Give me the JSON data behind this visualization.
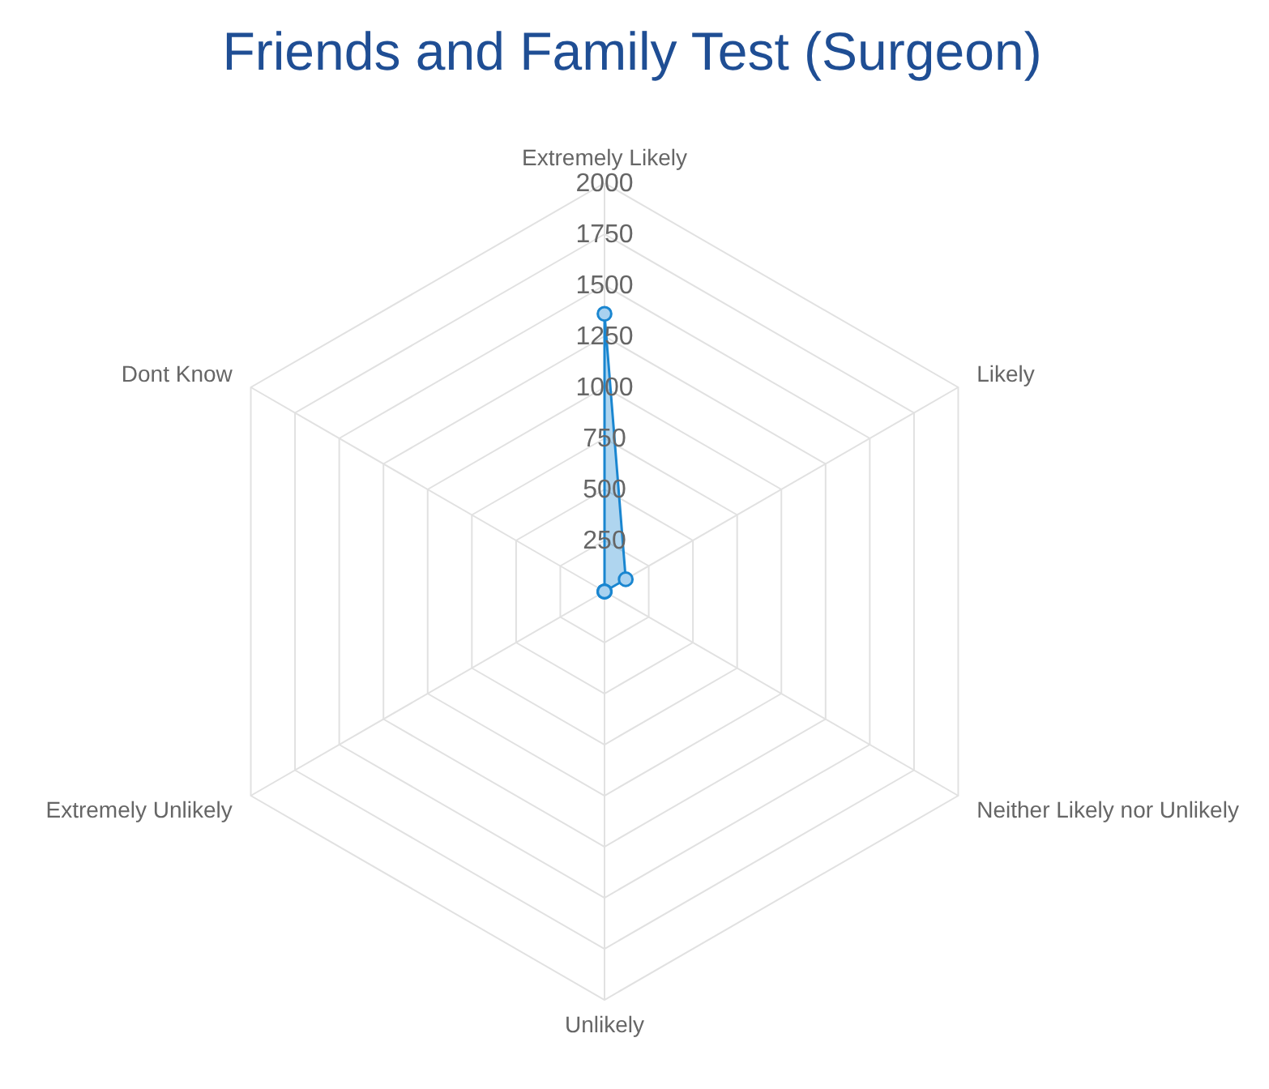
{
  "chart_data": {
    "type": "radar",
    "title": "Friends and Family Test (Surgeon)",
    "categories": [
      "Extremely Likely",
      "Likely",
      "Neither Likely nor Unlikely",
      "Unlikely",
      "Extremely Unlikely",
      "Dont Know"
    ],
    "series": [
      {
        "color": "#1a86d0",
        "values": [
          1360,
          120,
          0,
          0,
          0,
          0
        ]
      }
    ],
    "ylim": [
      0,
      2000
    ],
    "yticks": [
      250,
      500,
      750,
      1000,
      1250,
      1500,
      1750,
      2000
    ],
    "grid": true,
    "marker": "circle"
  }
}
